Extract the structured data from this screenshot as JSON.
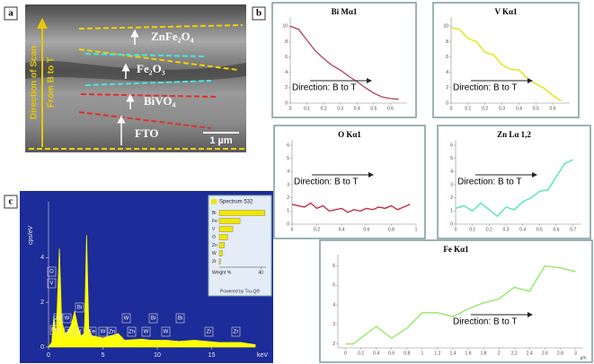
{
  "figure": {
    "panel_labels": [
      "a",
      "b",
      "c"
    ],
    "panel_a": {
      "layers": [
        "ZnFe₂O₄",
        "Fe₂O₃",
        "BiVO₄",
        "FTO"
      ],
      "scan": [
        "Direction of Scan",
        "From B to T"
      ],
      "scale_bar": "1 µm"
    }
  },
  "chart_data": [
    {
      "type": "line",
      "title": "Bi Mα1",
      "annotation": "Direction: B to T",
      "color": "#b4405a",
      "x": [
        0,
        0.05,
        0.1,
        0.15,
        0.2,
        0.25,
        0.3,
        0.35,
        0.4,
        0.45,
        0.5,
        0.55,
        0.6,
        0.65
      ],
      "values": [
        10,
        9.6,
        8.2,
        6.8,
        5.8,
        4.9,
        4.3,
        3.5,
        2.8,
        2.0,
        1.3,
        0.8,
        0.6,
        0.5
      ],
      "xlim": [
        0,
        0.7
      ],
      "xticks": [
        0,
        0.1,
        0.2,
        0.3,
        0.4,
        0.5,
        0.6
      ],
      "ylim": [
        0,
        10.5
      ],
      "yticks": [
        0,
        2,
        4,
        6,
        8,
        10
      ]
    },
    {
      "type": "line",
      "title": "V Kα1",
      "annotation": "Direction: B to T",
      "color": "#e6e000",
      "x": [
        0,
        0.05,
        0.1,
        0.15,
        0.2,
        0.25,
        0.3,
        0.35,
        0.4,
        0.45,
        0.5,
        0.55,
        0.6,
        0.65
      ],
      "values": [
        9.8,
        9.6,
        8.4,
        8.0,
        6.6,
        6.3,
        5.0,
        4.4,
        4.3,
        3.2,
        2.5,
        1.9,
        1.0,
        0.3
      ],
      "xlim": [
        0,
        0.7
      ],
      "xticks": [
        0,
        0.1,
        0.2,
        0.3,
        0.4,
        0.5,
        0.6
      ],
      "ylim": [
        0,
        10.5
      ],
      "yticks": [
        0,
        2,
        4,
        6,
        8,
        10
      ]
    },
    {
      "type": "line",
      "title": "O Kα1",
      "annotation": "Direction: B to T",
      "color": "#c0203a",
      "x": [
        0,
        0.05,
        0.1,
        0.15,
        0.2,
        0.25,
        0.3,
        0.35,
        0.4,
        0.45,
        0.5,
        0.55,
        0.6,
        0.65,
        0.7,
        0.75,
        0.8,
        0.85,
        0.9,
        0.95
      ],
      "values": [
        1.5,
        1.4,
        1.3,
        1.6,
        1.2,
        1.4,
        1.0,
        1.1,
        1.2,
        0.9,
        1.1,
        1.0,
        1.2,
        1.1,
        1.3,
        1.2,
        1.4,
        1.1,
        1.3,
        1.5
      ],
      "xlim": [
        0,
        1
      ],
      "xticks": [
        0,
        0.2,
        0.4,
        0.6,
        0.8,
        1
      ],
      "ylim": [
        0,
        6
      ],
      "yticks": [
        0,
        1,
        2,
        3,
        4,
        5,
        6
      ]
    },
    {
      "type": "line",
      "title": "Zn Lα 1,2",
      "annotation": "Direction: B to T",
      "color": "#44e8a4",
      "x": [
        0,
        0.05,
        0.1,
        0.15,
        0.2,
        0.25,
        0.3,
        0.35,
        0.4,
        0.45,
        0.5,
        0.55,
        0.6,
        0.65,
        0.7
      ],
      "values": [
        1.2,
        1.4,
        1.0,
        1.6,
        1.1,
        0.6,
        1.3,
        1.1,
        1.7,
        2.0,
        2.5,
        2.6,
        3.6,
        4.6,
        4.9
      ],
      "xlim": [
        0,
        0.75
      ],
      "xticks": [
        0,
        0.1,
        0.2,
        0.3,
        0.4,
        0.5,
        0.6,
        0.7
      ],
      "ylim": [
        0,
        6
      ],
      "yticks": [
        0,
        1,
        2,
        3,
        4,
        5,
        6
      ]
    },
    {
      "type": "line",
      "title": "Fe Kα1",
      "annotation": "Direction: B to T",
      "color": "#8ee860",
      "xlabel": "µm",
      "x": [
        0,
        0.1,
        0.2,
        0.4,
        0.6,
        0.8,
        1.0,
        1.2,
        1.4,
        1.6,
        1.8,
        2.0,
        2.2,
        2.4,
        2.6,
        2.8,
        3.0
      ],
      "values": [
        2.0,
        2.0,
        2.3,
        2.9,
        2.3,
        2.8,
        3.6,
        3.6,
        3.4,
        3.8,
        4.1,
        4.3,
        4.9,
        4.7,
        6.0,
        5.9,
        5.7
      ],
      "xlim": [
        -0.1,
        3.1
      ],
      "xticks": [
        0,
        0.2,
        0.4,
        0.6,
        0.8,
        1,
        1.2,
        1.4,
        1.6,
        1.8,
        2,
        2.2,
        2.4,
        2.6,
        2.8,
        3
      ],
      "ylim": [
        1.8,
        6.3
      ],
      "yticks": [
        2,
        3,
        4,
        5,
        6
      ]
    },
    {
      "type": "area",
      "color": "#ffff00",
      "background": "#1c2c98",
      "xlabel": "keV",
      "ylabel": "cps/eV",
      "x": [
        0,
        0.3,
        0.5,
        0.7,
        1.0,
        1.2,
        1.5,
        1.8,
        2.1,
        2.4,
        2.7,
        3.0,
        3.3,
        3.5,
        3.7,
        4.0,
        5.0,
        6.4,
        7.0,
        8.6,
        9.4,
        10.8,
        12,
        13.4,
        15.7,
        17.7,
        19
      ],
      "values": [
        0,
        0.2,
        1.4,
        0.4,
        4.4,
        1.2,
        0.6,
        0.7,
        1.0,
        1.6,
        0.9,
        0.5,
        0.6,
        5.0,
        0.8,
        0.5,
        0.4,
        0.6,
        0.3,
        0.35,
        0.3,
        0.3,
        0.25,
        0.3,
        0.2,
        0.2,
        0.1
      ],
      "xlim": [
        0,
        19
      ],
      "xticks": [
        0,
        5,
        10,
        15
      ],
      "ylim": [
        0,
        6.5
      ],
      "yticks": [
        0,
        2,
        4
      ],
      "peak_labels": [
        "O",
        "V",
        "Zn",
        "W",
        "Bi",
        "Fe",
        "Zr",
        "V",
        "Fe",
        "W",
        "Zn",
        "W",
        "Zn",
        "W",
        "Bi",
        "W",
        "Bi",
        "Zr",
        "Zr"
      ]
    },
    {
      "type": "bar",
      "title": "Spectrum 532",
      "color": "#f2e600",
      "xlabel": "Weight %",
      "footer": "Powered by Tru-Q®",
      "categories": [
        "Bi",
        "Fe",
        "V",
        "O",
        "Zn",
        "W",
        "Zr"
      ],
      "values": [
        44,
        20,
        13,
        8,
        5,
        3,
        1
      ],
      "xlim": [
        0,
        45
      ],
      "xticks": [
        40
      ]
    }
  ]
}
